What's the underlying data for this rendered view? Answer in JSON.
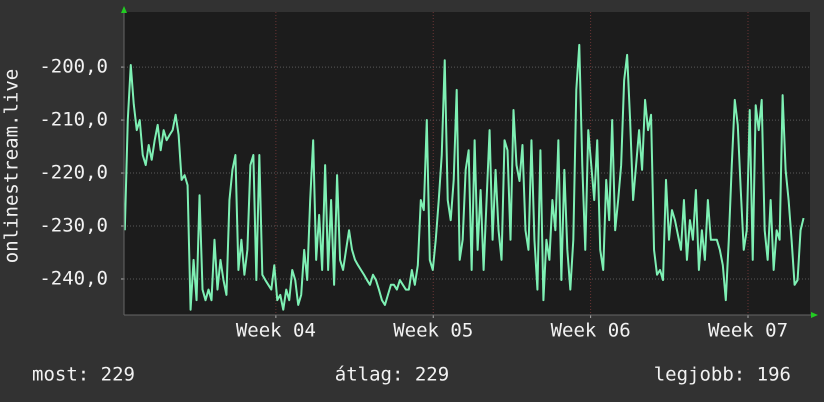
{
  "chart_data": {
    "type": "line",
    "y_label": "onlinestream.live",
    "color": "#7ef0b4",
    "grid": true,
    "xlim": [
      3.035,
      7.394
    ],
    "ylim": [
      -246.8,
      -189.6
    ],
    "xticks": [
      {
        "value": 4,
        "label": "Week 04"
      },
      {
        "value": 5,
        "label": "Week 05"
      },
      {
        "value": 6,
        "label": "Week 06"
      },
      {
        "value": 7,
        "label": "Week 07"
      }
    ],
    "yticks": [
      {
        "value": -240,
        "label": "-240,0"
      },
      {
        "value": -230,
        "label": "-230,0"
      },
      {
        "value": -220,
        "label": "-220,0"
      },
      {
        "value": -210,
        "label": "-210,0"
      },
      {
        "value": -200,
        "label": "-200,0"
      }
    ],
    "x": [
      3.04,
      3.059,
      3.078,
      3.097,
      3.116,
      3.135,
      3.154,
      3.173,
      3.192,
      3.211,
      3.23,
      3.249,
      3.268,
      3.287,
      3.306,
      3.325,
      3.344,
      3.363,
      3.382,
      3.401,
      3.42,
      3.439,
      3.458,
      3.477,
      3.496,
      3.515,
      3.534,
      3.553,
      3.572,
      3.591,
      3.61,
      3.629,
      3.648,
      3.667,
      3.686,
      3.705,
      3.724,
      3.743,
      3.762,
      3.781,
      3.8,
      3.819,
      3.838,
      3.857,
      3.876,
      3.895,
      3.914,
      3.933,
      3.952,
      3.971,
      3.99,
      4.009,
      4.028,
      4.047,
      4.066,
      4.085,
      4.104,
      4.123,
      4.142,
      4.161,
      4.18,
      4.199,
      4.218,
      4.237,
      4.256,
      4.275,
      4.294,
      4.313,
      4.332,
      4.351,
      4.37,
      4.389,
      4.408,
      4.427,
      4.446,
      4.465,
      4.484,
      4.503,
      4.522,
      4.541,
      4.56,
      4.579,
      4.598,
      4.617,
      4.636,
      4.655,
      4.674,
      4.693,
      4.712,
      4.731,
      4.75,
      4.769,
      4.788,
      4.807,
      4.826,
      4.845,
      4.864,
      4.883,
      4.902,
      4.921,
      4.94,
      4.959,
      4.978,
      4.997,
      5.016,
      5.035,
      5.054,
      5.073,
      5.092,
      5.111,
      5.13,
      5.149,
      5.168,
      5.187,
      5.206,
      5.225,
      5.244,
      5.263,
      5.282,
      5.301,
      5.32,
      5.339,
      5.358,
      5.377,
      5.396,
      5.415,
      5.434,
      5.453,
      5.472,
      5.491,
      5.51,
      5.529,
      5.548,
      5.567,
      5.586,
      5.605,
      5.624,
      5.643,
      5.662,
      5.681,
      5.7,
      5.719,
      5.738,
      5.757,
      5.776,
      5.795,
      5.814,
      5.833,
      5.852,
      5.871,
      5.89,
      5.909,
      5.928,
      5.947,
      5.966,
      5.985,
      6.004,
      6.023,
      6.042,
      6.061,
      6.08,
      6.099,
      6.118,
      6.137,
      6.156,
      6.175,
      6.194,
      6.213,
      6.232,
      6.251,
      6.27,
      6.289,
      6.308,
      6.327,
      6.346,
      6.365,
      6.384,
      6.403,
      6.422,
      6.441,
      6.46,
      6.479,
      6.498,
      6.517,
      6.536,
      6.555,
      6.574,
      6.593,
      6.612,
      6.631,
      6.65,
      6.669,
      6.688,
      6.707,
      6.726,
      6.745,
      6.764,
      6.783,
      6.802,
      6.821,
      6.84,
      6.859,
      6.878,
      6.897,
      6.916,
      6.935,
      6.954,
      6.973,
      6.992,
      7.011,
      7.03,
      7.049,
      7.068,
      7.087,
      7.106,
      7.125,
      7.144,
      7.163,
      7.182,
      7.201,
      7.22,
      7.239,
      7.258,
      7.277,
      7.296,
      7.315,
      7.334,
      7.353
    ],
    "values": [
      -230.8,
      -210,
      -199.6,
      -207,
      -211.9,
      -210,
      -216.6,
      -218.5,
      -214.7,
      -217.5,
      -213.8,
      -210.9,
      -215.7,
      -211.9,
      -213.8,
      -212.8,
      -211.9,
      -209,
      -212.8,
      -221.3,
      -220.4,
      -222.3,
      -245.8,
      -236.4,
      -244,
      -224.2,
      -242,
      -244,
      -242,
      -244,
      -232.6,
      -242,
      -236.4,
      -240.2,
      -243,
      -225.1,
      -219.4,
      -216.6,
      -238.3,
      -232.6,
      -239.2,
      -234.5,
      -218.5,
      -216.6,
      -240.2,
      -216.6,
      -239.2,
      -240.2,
      -241.1,
      -242,
      -237.4,
      -244,
      -243,
      -245.8,
      -242,
      -244,
      -238.3,
      -240.2,
      -244.9,
      -243,
      -234.5,
      -240.2,
      -225.1,
      -213.8,
      -236.4,
      -227.9,
      -238.3,
      -218.5,
      -238.3,
      -225.1,
      -241.1,
      -220.4,
      -236.4,
      -238.3,
      -234.5,
      -230.8,
      -234.5,
      -236.4,
      -237.4,
      -238.3,
      -239.2,
      -240.2,
      -241.1,
      -239.2,
      -240.2,
      -242,
      -244,
      -244.9,
      -243,
      -241.1,
      -241.1,
      -242,
      -240.2,
      -241.1,
      -242,
      -242,
      -238.3,
      -241.1,
      -237.4,
      -225.1,
      -227,
      -210,
      -236.4,
      -238.3,
      -232.6,
      -225.1,
      -216.6,
      -198.7,
      -225.1,
      -228.9,
      -221.3,
      -204.3,
      -236.4,
      -232.6,
      -219.4,
      -215.7,
      -238.3,
      -213.8,
      -234.5,
      -223.2,
      -238.3,
      -225.1,
      -211.9,
      -232.6,
      -219.4,
      -230.8,
      -236.4,
      -213.8,
      -215.7,
      -232.6,
      -208.1,
      -218.5,
      -221.5,
      -214.7,
      -230.8,
      -234.5,
      -213.8,
      -232.6,
      -242,
      -215.7,
      -244,
      -232.6,
      -236.4,
      -225.1,
      -230.8,
      -213.8,
      -240.2,
      -219.4,
      -234.5,
      -242,
      -232.6,
      -204.3,
      -195.8,
      -218.5,
      -234.5,
      -211.9,
      -218.5,
      -225.1,
      -213.8,
      -234.5,
      -238.3,
      -221.3,
      -228.9,
      -210,
      -230.8,
      -225.1,
      -218.5,
      -202.5,
      -197.7,
      -210,
      -225.1,
      -218.5,
      -211.9,
      -219.4,
      -206.2,
      -211.9,
      -209,
      -234.5,
      -239.2,
      -238.3,
      -240.2,
      -221.3,
      -232.6,
      -227,
      -228.9,
      -231.7,
      -234.5,
      -225.1,
      -236.4,
      -228.9,
      -232.6,
      -223.2,
      -238.3,
      -230.8,
      -236.4,
      -225.1,
      -232.6,
      -232.6,
      -232.6,
      -234.5,
      -237.4,
      -244,
      -232.6,
      -218.5,
      -206.2,
      -210.9,
      -223.2,
      -234.5,
      -230.8,
      -208.1,
      -236.4,
      -207.2,
      -211.9,
      -206.2,
      -230.8,
      -236.4,
      -225.1,
      -238.3,
      -230.8,
      -232.6,
      -205.3,
      -219.4,
      -225.1,
      -232.6,
      -241.1,
      -240.2,
      -230.8,
      -228.5
    ],
    "stats": [
      "most: 229",
      "átlag: 229",
      "legjobb: 196"
    ]
  }
}
